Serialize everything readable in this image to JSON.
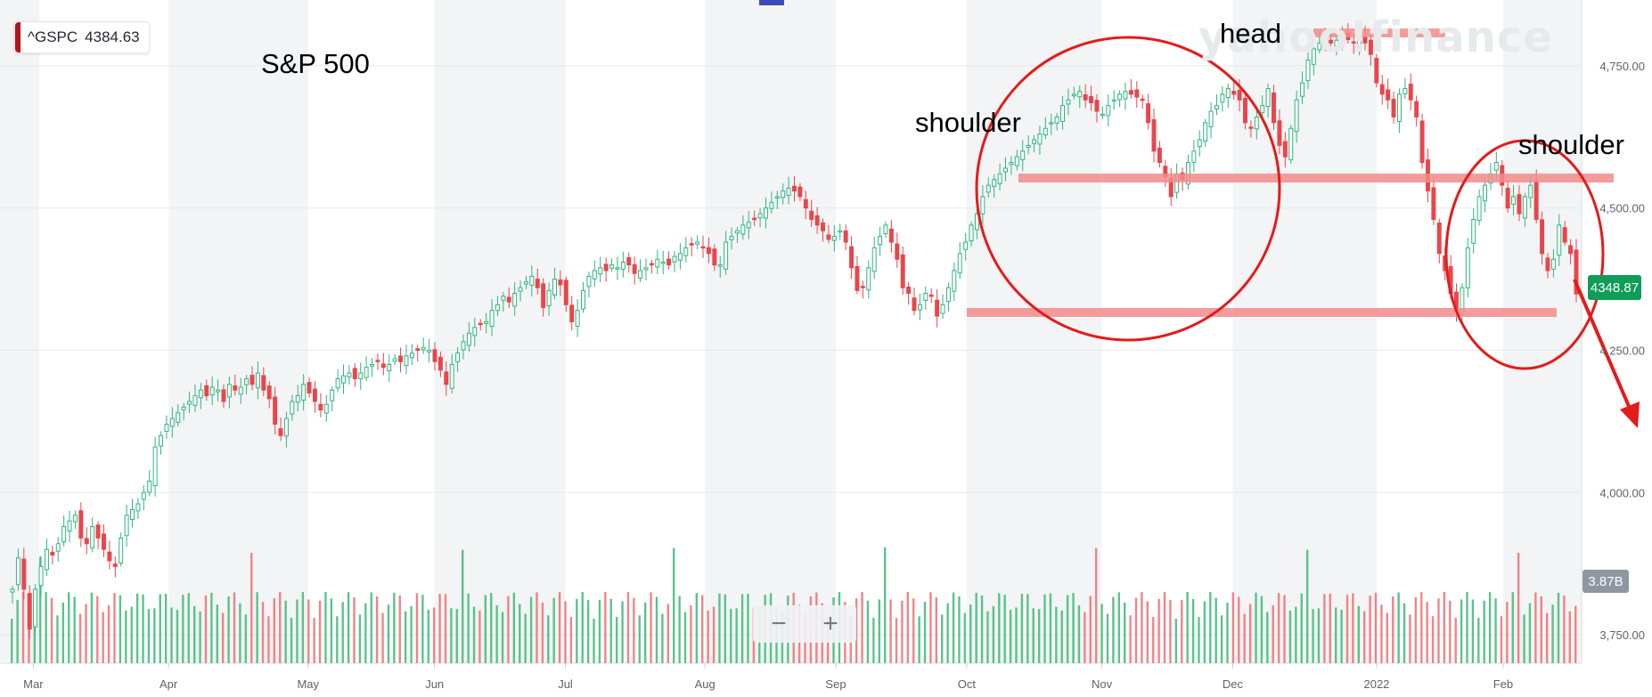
{
  "header": {
    "ticker_symbol": "^GSPC",
    "ticker_price": "4384.63",
    "chart_title": "S&P 500",
    "logo_text": "yahoo!finance",
    "current_price_tag": "4348.87",
    "current_volume_tag": "3.87B"
  },
  "annotations": {
    "left_shoulder": "shoulder",
    "head": "head",
    "right_shoulder": "shoulder"
  },
  "zoom": {
    "minus_label": "−",
    "plus_label": "+"
  },
  "colors": {
    "up": "#2eb67d",
    "down": "#e8464c",
    "up_volume": "#3cb878",
    "down_volume": "#ee6d72",
    "annotation_red": "#e41b1b",
    "annotation_band": "#f28b8b",
    "grid": "#e6e8ea",
    "month_shade": "#f3f4f5"
  },
  "chart_data": {
    "type": "candlestick",
    "title": "S&P 500",
    "ylim": [
      3700,
      4850
    ],
    "y_ticks": [
      {
        "value": 4750,
        "label": "4,750.00"
      },
      {
        "value": 4500,
        "label": "4,500.00"
      },
      {
        "value": 4250,
        "label": "4,250.00"
      },
      {
        "value": 4000,
        "label": "4,000.00"
      },
      {
        "value": 3750,
        "label": "3,750.00"
      }
    ],
    "x_ticks": [
      {
        "label": "Mar",
        "date": "2021-03-01"
      },
      {
        "label": "Apr",
        "date": "2021-04-01"
      },
      {
        "label": "May",
        "date": "2021-05-03"
      },
      {
        "label": "Jun",
        "date": "2021-06-01"
      },
      {
        "label": "Jul",
        "date": "2021-07-01"
      },
      {
        "label": "Aug",
        "date": "2021-08-02"
      },
      {
        "label": "Sep",
        "date": "2021-09-01"
      },
      {
        "label": "Oct",
        "date": "2021-10-01"
      },
      {
        "label": "Nov",
        "date": "2021-11-01"
      },
      {
        "label": "Dec",
        "date": "2021-12-01"
      },
      {
        "label": "2022",
        "date": "2022-01-03"
      },
      {
        "label": "Feb",
        "date": "2022-02-01"
      }
    ],
    "closes": [
      3830,
      3885,
      3830,
      3760,
      3830,
      3870,
      3900,
      3890,
      3910,
      3940,
      3950,
      3960,
      3920,
      3910,
      3940,
      3920,
      3900,
      3880,
      3870,
      3920,
      3960,
      3970,
      3980,
      4000,
      4020,
      4080,
      4100,
      4120,
      4130,
      4140,
      4150,
      4160,
      4170,
      4180,
      4170,
      4185,
      4180,
      4160,
      4190,
      4180,
      4185,
      4200,
      4190,
      4210,
      4180,
      4165,
      4120,
      4100,
      4130,
      4160,
      4170,
      4190,
      4175,
      4160,
      4145,
      4155,
      4180,
      4200,
      4205,
      4210,
      4200,
      4210,
      4220,
      4225,
      4230,
      4220,
      4225,
      4235,
      4230,
      4240,
      4245,
      4250,
      4255,
      4250,
      4230,
      4215,
      4190,
      4225,
      4245,
      4265,
      4280,
      4290,
      4295,
      4300,
      4320,
      4330,
      4345,
      4335,
      4350,
      4360,
      4370,
      4380,
      4360,
      4325,
      4355,
      4375,
      4365,
      4330,
      4300,
      4320,
      4355,
      4380,
      4390,
      4395,
      4390,
      4400,
      4395,
      4405,
      4400,
      4385,
      4390,
      4395,
      4400,
      4410,
      4405,
      4400,
      4415,
      4420,
      4430,
      4435,
      4440,
      4430,
      4420,
      4400,
      4400,
      4440,
      4450,
      4460,
      4470,
      4475,
      4480,
      4490,
      4500,
      4510,
      4520,
      4530,
      4535,
      4530,
      4520,
      4500,
      4480,
      4470,
      4460,
      4445,
      4450,
      4460,
      4440,
      4395,
      4355,
      4360,
      4395,
      4430,
      4450,
      4470,
      4440,
      4410,
      4360,
      4350,
      4320,
      4330,
      4350,
      4345,
      4310,
      4330,
      4360,
      4390,
      4420,
      4440,
      4470,
      4490,
      4520,
      4540,
      4550,
      4560,
      4570,
      4580,
      4590,
      4600,
      4610,
      4620,
      4630,
      4640,
      4650,
      4660,
      4680,
      4690,
      4700,
      4705,
      4690,
      4685,
      4670,
      4665,
      4680,
      4690,
      4700,
      4705,
      4700,
      4695,
      4690,
      4650,
      4600,
      4580,
      4555,
      4520,
      4560,
      4550,
      4580,
      4600,
      4620,
      4650,
      4670,
      4680,
      4700,
      4710,
      4700,
      4690,
      4650,
      4640,
      4660,
      4680,
      4710,
      4650,
      4610,
      4590,
      4640,
      4690,
      4720,
      4760,
      4780,
      4790,
      4795,
      4790,
      4795,
      4800,
      4796,
      4790,
      4795,
      4790,
      4770,
      4720,
      4700,
      4690,
      4660,
      4700,
      4710,
      4690,
      4660,
      4580,
      4530,
      4480,
      4420,
      4390,
      4350,
      4320,
      4360,
      4430,
      4480,
      4520,
      4540,
      4560,
      4580,
      4540,
      4500,
      4520,
      4490,
      4520,
      4540,
      4480,
      4420,
      4390,
      4410,
      4470,
      4440,
      4420,
      4349
    ]
  }
}
